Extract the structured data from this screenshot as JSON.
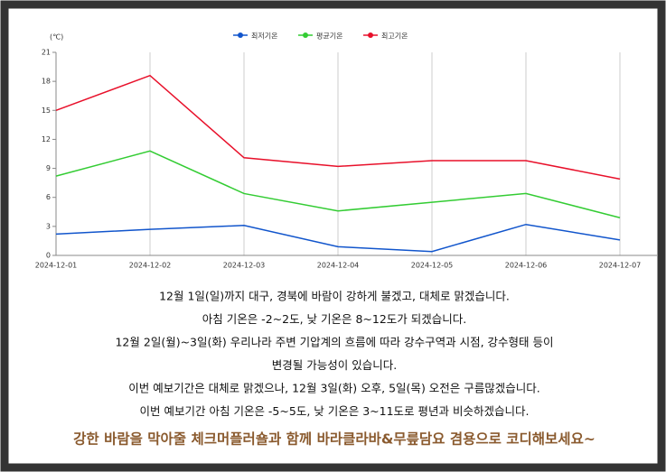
{
  "chart_data": {
    "type": "line",
    "unit_label": "(℃)",
    "categories": [
      "2024-12-01",
      "2024-12-02",
      "2024-12-03",
      "2024-12-04",
      "2024-12-05",
      "2024-12-06",
      "2024-12-07"
    ],
    "series": [
      {
        "name": "최저기온",
        "color": "#1155cc",
        "values": [
          2.2,
          2.7,
          3.1,
          0.9,
          0.4,
          3.2,
          1.6
        ]
      },
      {
        "name": "평균기온",
        "color": "#33cc33",
        "values": [
          8.2,
          10.8,
          6.4,
          4.6,
          5.5,
          6.4,
          3.9
        ]
      },
      {
        "name": "최고기온",
        "color": "#e8102a",
        "values": [
          15.0,
          18.6,
          10.1,
          9.2,
          9.8,
          9.8,
          7.9
        ]
      }
    ],
    "ylim": [
      0,
      21
    ],
    "yticks": [
      0,
      3,
      6,
      9,
      12,
      15,
      18,
      21
    ],
    "grid": true,
    "legend": "top"
  },
  "notice": [
    "12월 1일(일)까지 대구, 경북에 바람이 강하게 불겠고, 대체로 맑겠습니다.",
    "아침 기온은 -2~2도, 낮 기온은 8~12도가 되겠습니다.",
    "12월 2일(월)~3일(화) 우리나라 주변 기압계의 흐름에 따라 강수구역과 시점, 강수형태 등이",
    "변경될 가능성이 있습니다.",
    "이번 예보기간은 대체로 맑겠으나, 12월 3일(화) 오후, 5일(목) 오전은 구름많겠습니다.",
    "이번 예보기간 아침 기온은 -5~5도, 낮 기온은 3~11도로 평년과 비슷하겠습니다."
  ],
  "promo": "강한 바람을 막아줄 체크머플러숄과 함께 바라클라바&무릎담요 겸용으로 코디해보세요~"
}
